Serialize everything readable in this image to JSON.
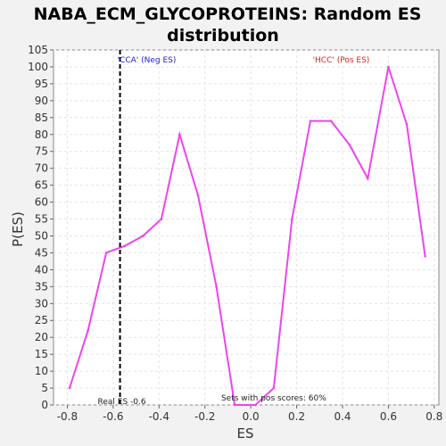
{
  "chart_data": {
    "type": "line",
    "title_line1": "NABA_ECM_GLYCOPROTEINS: Random ES",
    "title_line2": "distribution",
    "xlabel": "ES",
    "ylabel": "P(ES)",
    "xlim": [
      -0.86,
      0.82
    ],
    "ylim": [
      0,
      105
    ],
    "xticks": [
      -0.8,
      -0.6,
      -0.4,
      -0.2,
      0.0,
      0.2,
      0.4,
      0.6,
      0.8
    ],
    "xtick_labels": [
      "-0.8",
      "-0.6",
      "-0.4",
      "-0.2",
      "0.0",
      "0.2",
      "0.4",
      "0.6",
      "0.8"
    ],
    "yticks": [
      0,
      5,
      10,
      15,
      20,
      25,
      30,
      35,
      40,
      45,
      50,
      55,
      60,
      65,
      70,
      75,
      80,
      85,
      90,
      95,
      100,
      105
    ],
    "grid": true,
    "series": [
      {
        "color": "#ee44ee",
        "x": [
          -0.79,
          -0.71,
          -0.63,
          -0.55,
          -0.47,
          -0.39,
          -0.31,
          -0.23,
          -0.15,
          -0.07,
          0.02,
          0.1,
          0.18,
          0.26,
          0.35,
          0.43,
          0.51,
          0.6,
          0.68,
          0.76
        ],
        "y": [
          5,
          22,
          45,
          47,
          50,
          55,
          80,
          62,
          35,
          0,
          0,
          5,
          55,
          84,
          84,
          77,
          67,
          100,
          83,
          44
        ]
      }
    ],
    "annotations": {
      "neg_label": "'CCA' (Neg ES)",
      "neg_color": "#2222cc",
      "pos_label": "'HCC' (Pos ES)",
      "pos_color": "#dd2222",
      "real_es_value": -0.57,
      "real_es_label": "Real ES -0.6",
      "pos_scores_label": "Sets with pos scores: 60%"
    }
  }
}
